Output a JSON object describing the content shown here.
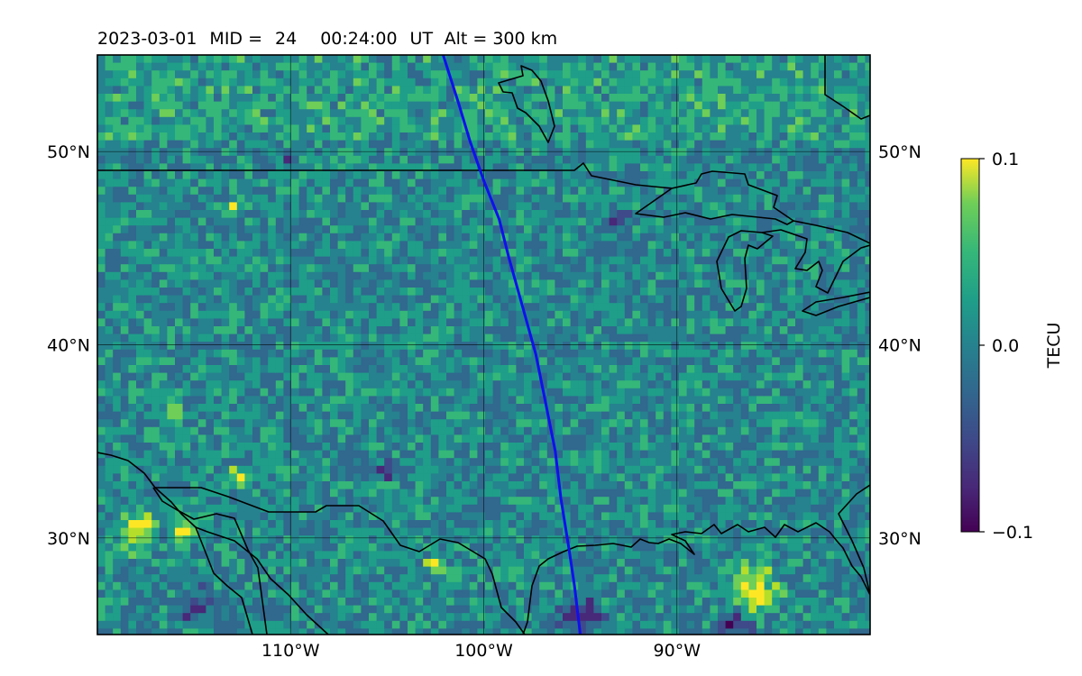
{
  "title": {
    "date": "2023-03-01",
    "mid_label": "MID =",
    "mid_value": "24",
    "time": "00:24:00",
    "time_unit": "UT",
    "alt_text": "Alt = 300 km"
  },
  "map": {
    "projection": "plate-carree",
    "lon_range": [
      -120,
      -80
    ],
    "lat_range": [
      25,
      55
    ],
    "lat_ticks": [
      {
        "value": 30,
        "label": "30°N"
      },
      {
        "value": 40,
        "label": "40°N"
      },
      {
        "value": 50,
        "label": "50°N"
      }
    ],
    "lon_ticks": [
      {
        "value": -110,
        "label": "110°W"
      },
      {
        "value": -100,
        "label": "100°W"
      },
      {
        "value": -90,
        "label": "90°W"
      }
    ],
    "gridlines": true,
    "field": "TEC perturbation (TECU), high-frequency noise, roughly uniform ~0 with yellow patches in SW and SE corners",
    "track": {
      "color": "#1010ee",
      "points": [
        [
          -102.1,
          55
        ],
        [
          -101.3,
          52.5
        ],
        [
          -100.7,
          50.5
        ],
        [
          -100.0,
          48.5
        ],
        [
          -99.2,
          46.5
        ],
        [
          -98.7,
          44.5
        ],
        [
          -98.0,
          42.0
        ],
        [
          -97.3,
          39.5
        ],
        [
          -96.8,
          37.0
        ],
        [
          -96.3,
          34.5
        ],
        [
          -96.0,
          32.0
        ],
        [
          -95.6,
          29.5
        ],
        [
          -95.3,
          27.5
        ],
        [
          -95.0,
          25
        ]
      ]
    }
  },
  "colorbar": {
    "label": "TECU",
    "min": -0.1,
    "max": 0.1,
    "colormap": "viridis",
    "ticks": [
      {
        "value": 0.1,
        "label": "0.1"
      },
      {
        "value": 0.0,
        "label": "0.0"
      },
      {
        "value": -0.1,
        "label": "−0.1"
      }
    ]
  }
}
